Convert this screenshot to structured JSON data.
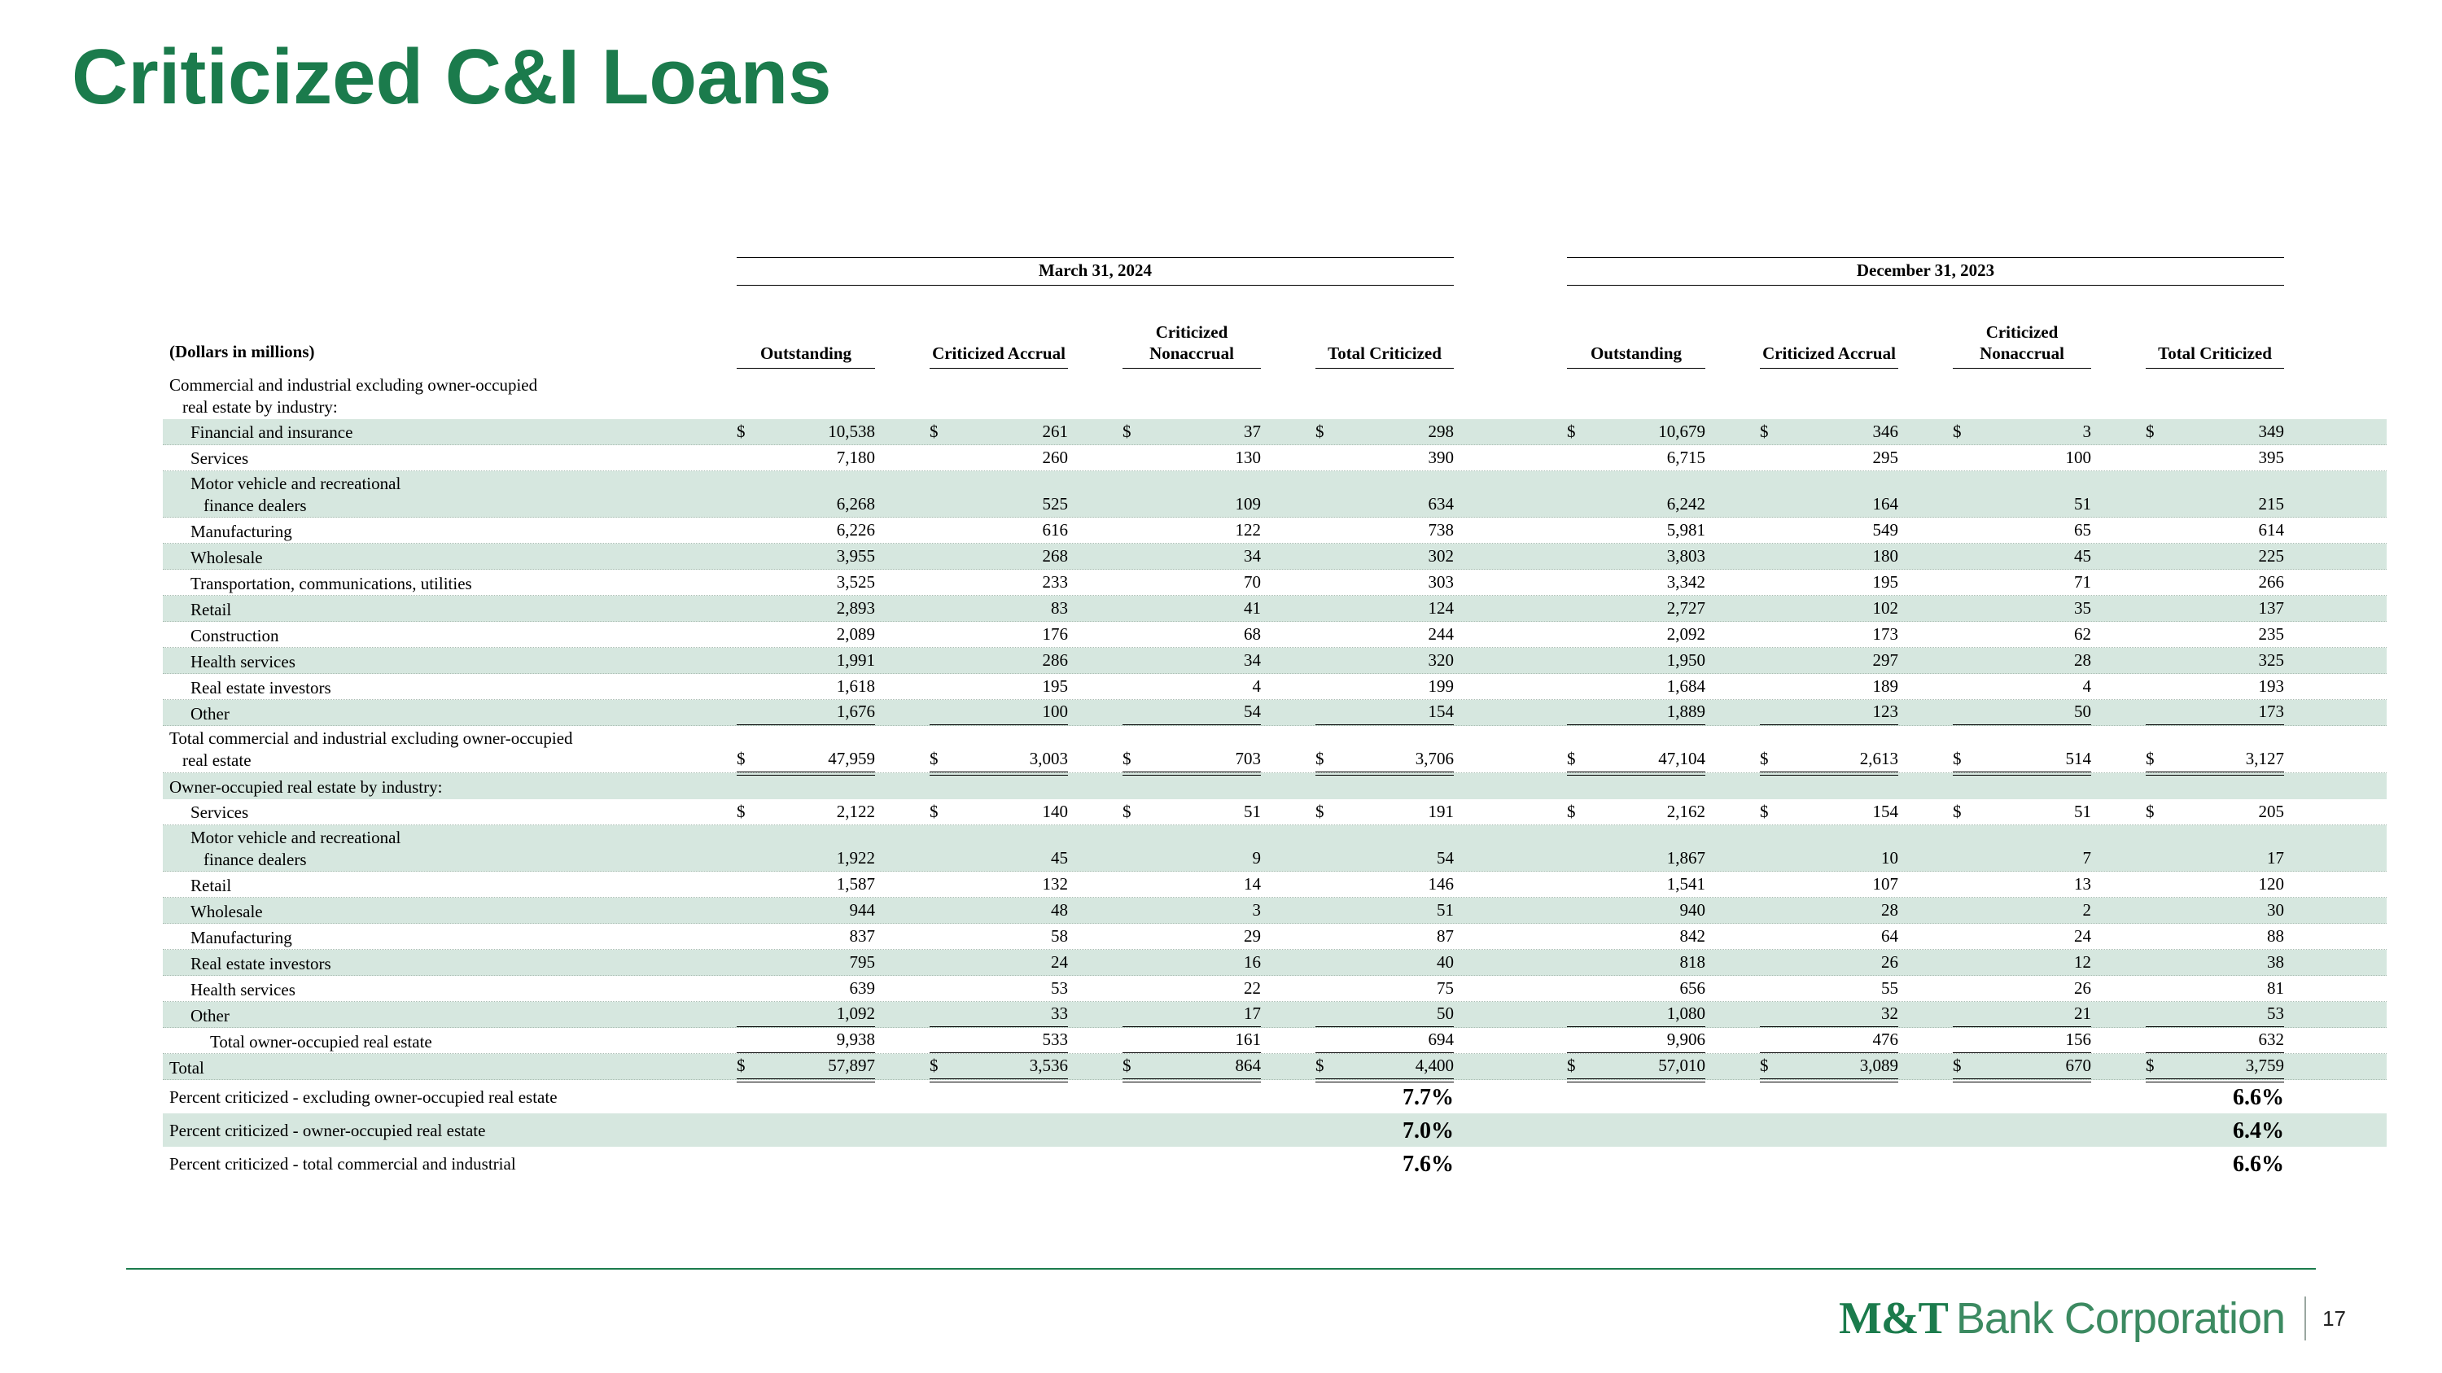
{
  "colors": {
    "brand_green": "#1b7b4c",
    "row_shade": "#d6e7df"
  },
  "title": "Criticized C&I Loans",
  "footer": {
    "logo_mt": "M&T",
    "logo_text": "Bank Corporation",
    "page_number": "17"
  },
  "table": {
    "units_label": "(Dollars in millions)",
    "groups": [
      {
        "label": "March 31, 2024"
      },
      {
        "label": "December 31, 2023"
      }
    ],
    "columns": [
      [
        "Outstanding"
      ],
      [
        "Criticized Accrual"
      ],
      [
        "Criticized",
        "Nonaccrual"
      ],
      [
        "Total Criticized"
      ]
    ],
    "rows": [
      {
        "type": "section",
        "lines": [
          "Commercial and industrial excluding owner-occupied",
          "real estate by industry:"
        ],
        "shaded": false
      },
      {
        "type": "data",
        "lines": [
          "Financial and insurance"
        ],
        "indent": 1,
        "dollar": true,
        "shaded": true,
        "values": [
          "10,538",
          "261",
          "37",
          "298",
          "10,679",
          "346",
          "3",
          "349"
        ]
      },
      {
        "type": "data",
        "lines": [
          "Services"
        ],
        "indent": 1,
        "shaded": false,
        "values": [
          "7,180",
          "260",
          "130",
          "390",
          "6,715",
          "295",
          "100",
          "395"
        ]
      },
      {
        "type": "data",
        "lines": [
          "Motor vehicle and recreational",
          "finance dealers"
        ],
        "indent": 1,
        "shaded": true,
        "values": [
          "6,268",
          "525",
          "109",
          "634",
          "6,242",
          "164",
          "51",
          "215"
        ]
      },
      {
        "type": "data",
        "lines": [
          "Manufacturing"
        ],
        "indent": 1,
        "shaded": false,
        "values": [
          "6,226",
          "616",
          "122",
          "738",
          "5,981",
          "549",
          "65",
          "614"
        ]
      },
      {
        "type": "data",
        "lines": [
          "Wholesale"
        ],
        "indent": 1,
        "shaded": true,
        "values": [
          "3,955",
          "268",
          "34",
          "302",
          "3,803",
          "180",
          "45",
          "225"
        ]
      },
      {
        "type": "data",
        "lines": [
          "Transportation, communications, utilities"
        ],
        "indent": 1,
        "shaded": false,
        "values": [
          "3,525",
          "233",
          "70",
          "303",
          "3,342",
          "195",
          "71",
          "266"
        ]
      },
      {
        "type": "data",
        "lines": [
          "Retail"
        ],
        "indent": 1,
        "shaded": true,
        "values": [
          "2,893",
          "83",
          "41",
          "124",
          "2,727",
          "102",
          "35",
          "137"
        ]
      },
      {
        "type": "data",
        "lines": [
          "Construction"
        ],
        "indent": 1,
        "shaded": false,
        "values": [
          "2,089",
          "176",
          "68",
          "244",
          "2,092",
          "173",
          "62",
          "235"
        ]
      },
      {
        "type": "data",
        "lines": [
          "Health services"
        ],
        "indent": 1,
        "shaded": true,
        "values": [
          "1,991",
          "286",
          "34",
          "320",
          "1,950",
          "297",
          "28",
          "325"
        ]
      },
      {
        "type": "data",
        "lines": [
          "Real estate investors"
        ],
        "indent": 1,
        "shaded": false,
        "values": [
          "1,618",
          "195",
          "4",
          "199",
          "1,684",
          "189",
          "4",
          "193"
        ]
      },
      {
        "type": "data",
        "lines": [
          "Other"
        ],
        "indent": 1,
        "shaded": true,
        "rule": "single",
        "values": [
          "1,676",
          "100",
          "54",
          "154",
          "1,889",
          "123",
          "50",
          "173"
        ]
      },
      {
        "type": "data",
        "lines": [
          "Total commercial and industrial excluding owner-occupied",
          "real estate"
        ],
        "indent": 0,
        "dollar": true,
        "shaded": false,
        "rule": "double",
        "values": [
          "47,959",
          "3,003",
          "703",
          "3,706",
          "47,104",
          "2,613",
          "514",
          "3,127"
        ]
      },
      {
        "type": "section",
        "lines": [
          "Owner-occupied real estate by industry:"
        ],
        "shaded": true
      },
      {
        "type": "data",
        "lines": [
          "Services"
        ],
        "indent": 1,
        "dollar": true,
        "shaded": false,
        "values": [
          "2,122",
          "140",
          "51",
          "191",
          "2,162",
          "154",
          "51",
          "205"
        ]
      },
      {
        "type": "data",
        "lines": [
          "Motor vehicle and recreational",
          "finance dealers"
        ],
        "indent": 1,
        "shaded": true,
        "values": [
          "1,922",
          "45",
          "9",
          "54",
          "1,867",
          "10",
          "7",
          "17"
        ]
      },
      {
        "type": "data",
        "lines": [
          "Retail"
        ],
        "indent": 1,
        "shaded": false,
        "values": [
          "1,587",
          "132",
          "14",
          "146",
          "1,541",
          "107",
          "13",
          "120"
        ]
      },
      {
        "type": "data",
        "lines": [
          "Wholesale"
        ],
        "indent": 1,
        "shaded": true,
        "values": [
          "944",
          "48",
          "3",
          "51",
          "940",
          "28",
          "2",
          "30"
        ]
      },
      {
        "type": "data",
        "lines": [
          "Manufacturing"
        ],
        "indent": 1,
        "shaded": false,
        "values": [
          "837",
          "58",
          "29",
          "87",
          "842",
          "64",
          "24",
          "88"
        ]
      },
      {
        "type": "data",
        "lines": [
          "Real estate investors"
        ],
        "indent": 1,
        "shaded": true,
        "values": [
          "795",
          "24",
          "16",
          "40",
          "818",
          "26",
          "12",
          "38"
        ]
      },
      {
        "type": "data",
        "lines": [
          "Health services"
        ],
        "indent": 1,
        "shaded": false,
        "values": [
          "639",
          "53",
          "22",
          "75",
          "656",
          "55",
          "26",
          "81"
        ]
      },
      {
        "type": "data",
        "lines": [
          "Other"
        ],
        "indent": 1,
        "shaded": true,
        "rule": "single",
        "values": [
          "1,092",
          "33",
          "17",
          "50",
          "1,080",
          "32",
          "21",
          "53"
        ]
      },
      {
        "type": "data",
        "lines": [
          "Total owner-occupied real estate"
        ],
        "indent": 2,
        "shaded": false,
        "rule": "single",
        "values": [
          "9,938",
          "533",
          "161",
          "694",
          "9,906",
          "476",
          "156",
          "632"
        ]
      },
      {
        "type": "data",
        "lines": [
          "Total"
        ],
        "indent": 0,
        "dollar": true,
        "shaded": true,
        "rule": "double",
        "values": [
          "57,897",
          "3,536",
          "864",
          "4,400",
          "57,010",
          "3,089",
          "670",
          "3,759"
        ]
      },
      {
        "type": "percent",
        "lines": [
          "Percent criticized - excluding owner-occupied real estate"
        ],
        "shaded": false,
        "values": [
          "",
          "",
          "",
          "7.7%",
          "",
          "",
          "",
          "6.6%"
        ]
      },
      {
        "type": "percent",
        "lines": [
          "Percent criticized - owner-occupied real estate"
        ],
        "shaded": true,
        "values": [
          "",
          "",
          "",
          "7.0%",
          "",
          "",
          "",
          "6.4%"
        ]
      },
      {
        "type": "percent",
        "lines": [
          "Percent criticized - total commercial and industrial"
        ],
        "shaded": false,
        "values": [
          "",
          "",
          "",
          "7.6%",
          "",
          "",
          "",
          "6.6%"
        ]
      }
    ]
  }
}
